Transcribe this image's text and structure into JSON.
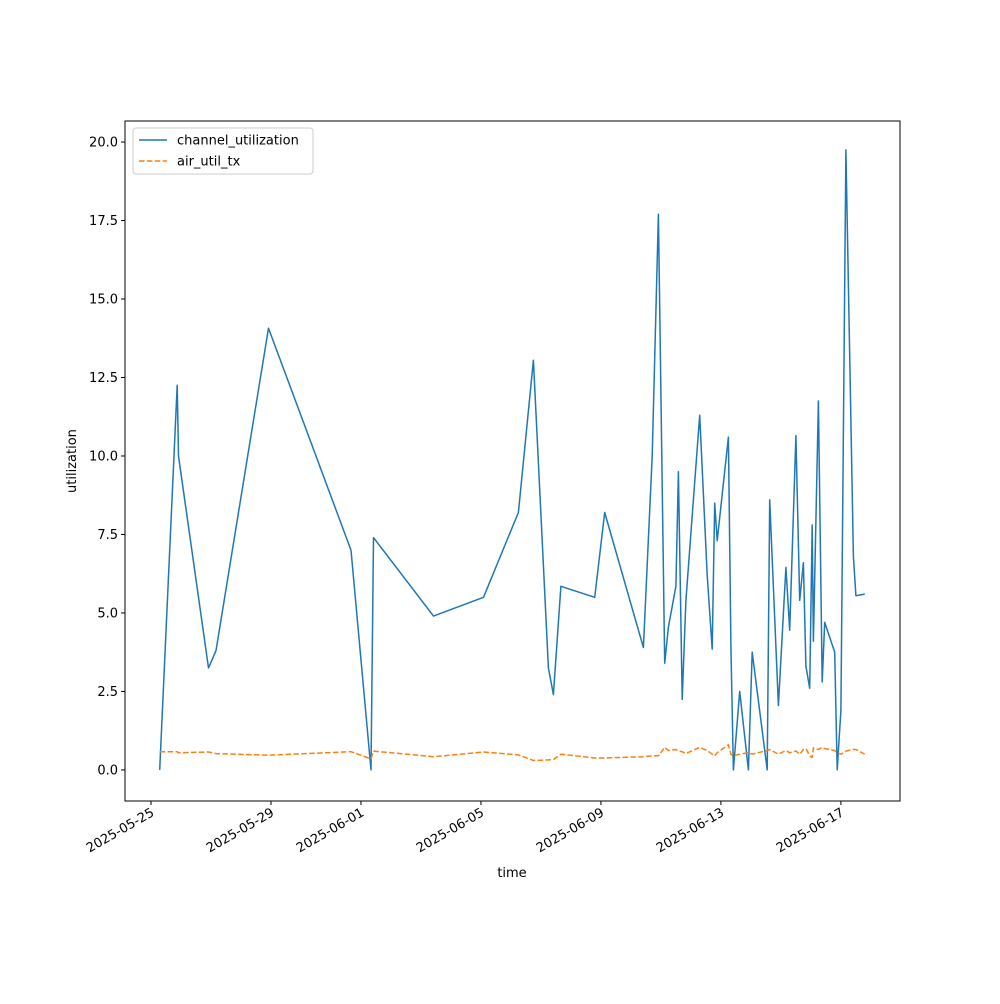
{
  "chart_data": {
    "type": "line",
    "x_label": "time",
    "y_label": "utilization",
    "x": [
      "2025-05-25T07:00",
      "2025-05-25T21:00",
      "2025-05-25T22:00",
      "2025-05-26T22:00",
      "2025-05-27T04:00",
      "2025-05-28T22:00",
      "2025-05-31T16:00",
      "2025-06-01T08:00",
      "2025-06-01T10:00",
      "2025-06-03T10:00",
      "2025-06-05T02:00",
      "2025-06-06T06:00",
      "2025-06-06T18:00",
      "2025-06-07T06:00",
      "2025-06-07T10:00",
      "2025-06-07T16:00",
      "2025-06-08T19:00",
      "2025-06-09T03:00",
      "2025-06-10T10:00",
      "2025-06-10T17:00",
      "2025-06-10T22:00",
      "2025-06-11T03:00",
      "2025-06-11T06:00",
      "2025-06-11T12:00",
      "2025-06-11T14:00",
      "2025-06-11T17:00",
      "2025-06-11T20:00",
      "2025-06-12T07:00",
      "2025-06-12T13:00",
      "2025-06-12T17:00",
      "2025-06-12T19:00",
      "2025-06-12T21:00",
      "2025-06-13T06:00",
      "2025-06-13T08:00",
      "2025-06-13T10:00",
      "2025-06-13T15:00",
      "2025-06-13T22:00",
      "2025-06-14T01:00",
      "2025-06-14T13:00",
      "2025-06-14T15:00",
      "2025-06-14T22:00",
      "2025-06-15T04:00",
      "2025-06-15T07:00",
      "2025-06-15T12:00",
      "2025-06-15T15:00",
      "2025-06-15T18:00",
      "2025-06-15T20:00",
      "2025-06-15T23:00",
      "2025-06-16T01:00",
      "2025-06-16T02:00",
      "2025-06-16T06:00",
      "2025-06-16T09:00",
      "2025-06-16T11:00",
      "2025-06-16T19:00",
      "2025-06-16T21:00",
      "2025-06-17T00:00",
      "2025-06-17T04:00",
      "2025-06-17T10:00",
      "2025-06-17T12:00",
      "2025-06-17T19:00"
    ],
    "series": [
      {
        "name": "channel_utilization",
        "color": "#1f77b4",
        "dash": false,
        "values": [
          0,
          12.25,
          10,
          3.25,
          3.8,
          14.07,
          7.0,
          0,
          7.4,
          4.9,
          5.5,
          8.2,
          13.05,
          3.25,
          2.4,
          5.85,
          5.5,
          8.2,
          3.9,
          10,
          17.7,
          3.4,
          4.55,
          5.85,
          9.5,
          2.25,
          5.4,
          11.3,
          6.2,
          3.85,
          8.5,
          7.3,
          10.6,
          3.95,
          0,
          2.5,
          0,
          3.75,
          0,
          8.6,
          2.05,
          6.45,
          4.45,
          10.65,
          5.4,
          6.6,
          3.3,
          2.6,
          7.8,
          4.1,
          11.75,
          2.8,
          4.7,
          3.75,
          0,
          1.9,
          19.75,
          6.8,
          5.55,
          5.6
        ]
      },
      {
        "name": "air_util_tx",
        "color": "#ff7f0e",
        "dash": true,
        "values": [
          0.58,
          0.58,
          0.55,
          0.57,
          0.52,
          0.47,
          0.58,
          0.35,
          0.6,
          0.42,
          0.57,
          0.48,
          0.3,
          0.32,
          0.33,
          0.5,
          0.38,
          0.38,
          0.42,
          0.45,
          0.45,
          0.72,
          0.62,
          0.65,
          0.6,
          0.58,
          0.52,
          0.72,
          0.62,
          0.5,
          0.45,
          0.55,
          0.8,
          0.5,
          0.45,
          0.5,
          0.55,
          0.5,
          0.62,
          0.65,
          0.5,
          0.62,
          0.55,
          0.6,
          0.5,
          0.65,
          0.68,
          0.45,
          0.4,
          0.7,
          0.65,
          0.72,
          0.68,
          0.62,
          0.55,
          0.5,
          0.6,
          0.65,
          0.65,
          0.5
        ]
      }
    ],
    "xlim": [
      "2025-05-24T03:12",
      "2025-06-18T23:17"
    ],
    "xticks": [
      "2025-05-25",
      "2025-05-29",
      "2025-06-01",
      "2025-06-05",
      "2025-06-09",
      "2025-06-13",
      "2025-06-17"
    ],
    "ylim": [
      -0.99,
      20.67
    ],
    "yticks": [
      {
        "value": 0,
        "label": "0.0"
      },
      2.5,
      {
        "value": 5,
        "label": "5.0"
      },
      7.5,
      {
        "value": 10,
        "label": "10.0"
      },
      12.5,
      {
        "value": 15,
        "label": "15.0"
      },
      17.5,
      {
        "value": 20,
        "label": "20.0"
      }
    ],
    "legend": "upper left"
  }
}
